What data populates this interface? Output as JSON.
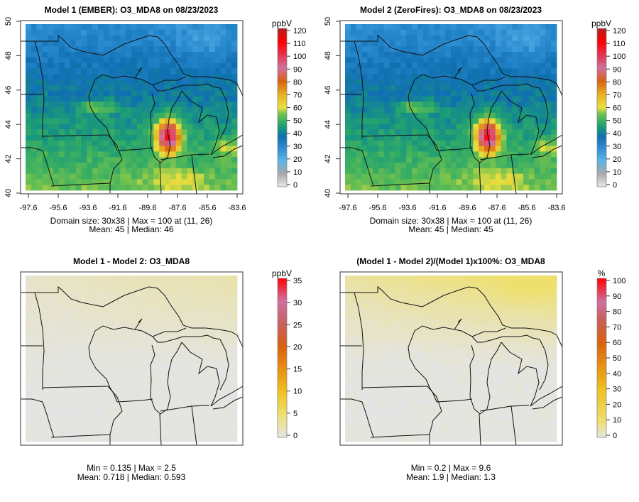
{
  "panels": [
    {
      "title": "Model 1 (EMBER): O3_MDA8 on 08/23/2023",
      "unit": "ppbV",
      "stats1": "Domain size: 30x38 | Max = 100 at (11, 26)",
      "stats2": "Mean: 45 |  Median: 46",
      "cbar_ticks": [
        "0",
        "10",
        "20",
        "30",
        "40",
        "50",
        "60",
        "70",
        "80",
        "90",
        "100",
        "110",
        "120"
      ]
    },
    {
      "title": "Model 2 (ZeroFires): O3_MDA8 on 08/23/2023",
      "unit": "ppbV",
      "stats1": "Domain size: 30x38 | Max = 100 at (11, 26)",
      "stats2": "Mean: 45 |  Median: 45",
      "cbar_ticks": [
        "0",
        "10",
        "20",
        "30",
        "40",
        "50",
        "60",
        "70",
        "80",
        "90",
        "100",
        "110",
        "120"
      ]
    },
    {
      "title": "Model 1 - Model 2: O3_MDA8",
      "unit": "ppbV",
      "stats1": "Min = 0.135 | Max = 2.5",
      "stats2": "Mean: 0.718 |  Median: 0.593",
      "cbar_ticks": [
        "0",
        "5",
        "10",
        "15",
        "20",
        "25",
        "30",
        "35"
      ]
    },
    {
      "title": "(Model 1 - Model 2)/(Model 1)x100%: O3_MDA8",
      "unit": "%",
      "stats1": "Min = 0.2 | Max = 9.6",
      "stats2": "Mean: 1.9 |  Median: 1.3",
      "cbar_ticks": [
        "0",
        "10",
        "20",
        "30",
        "40",
        "50",
        "60",
        "70",
        "80",
        "90",
        "100"
      ]
    }
  ],
  "x_ticks": [
    "-97.6",
    "-95.6",
    "-93.6",
    "-91.6",
    "-89.6",
    "-87.6",
    "-85.6",
    "-83.6"
  ],
  "y_ticks": [
    "40",
    "42",
    "44",
    "46",
    "48",
    "50"
  ],
  "chart_data": {
    "type": "heatmap",
    "grid": "30x38",
    "variable": "O3_MDA8",
    "date": "08/23/2023",
    "xlim": [
      -97.6,
      -83.6
    ],
    "ylim": [
      40,
      50
    ]
  }
}
